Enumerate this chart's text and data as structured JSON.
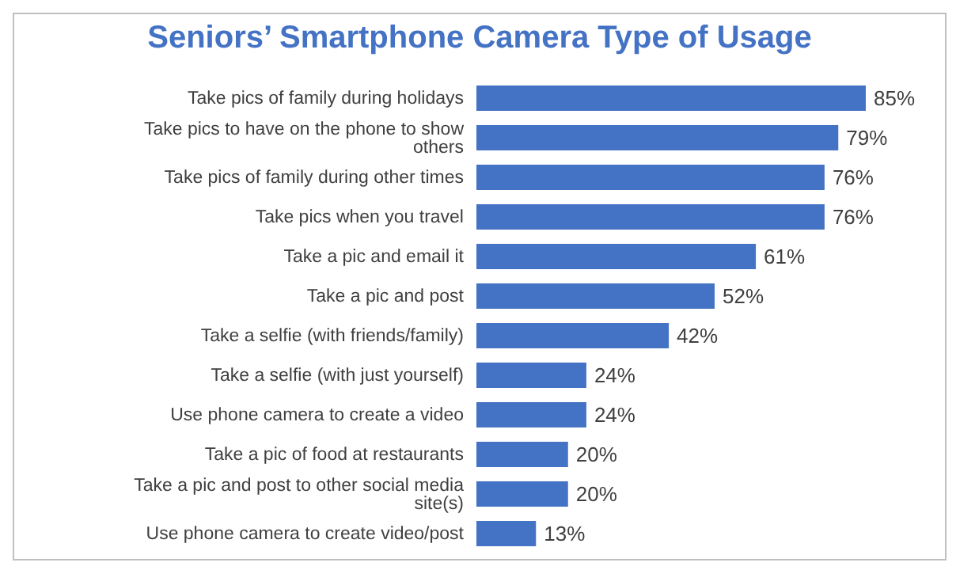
{
  "chart_data": {
    "type": "bar",
    "orientation": "horizontal",
    "title": "Seniors’ Smartphone Camera Type of Usage",
    "categories": [
      "Take pics of family during holidays",
      "Take pics to have on the phone to show others",
      "Take pics of family during other times",
      "Take pics when you travel",
      "Take a pic and email it",
      "Take a pic and post",
      "Take a selfie (with friends/family)",
      "Take a selfie (with just yourself)",
      "Use phone camera to create a video",
      "Take a pic of food at restaurants",
      "Take a pic and post to other social media site(s)",
      "Use phone camera to create video/post"
    ],
    "values": [
      85,
      79,
      76,
      76,
      61,
      52,
      42,
      24,
      24,
      20,
      20,
      13
    ],
    "value_labels": [
      "85%",
      "79%",
      "76%",
      "76%",
      "61%",
      "52%",
      "42%",
      "24%",
      "24%",
      "20%",
      "20%",
      "13%"
    ],
    "color": "#4472c4",
    "grid": false,
    "legend": false
  }
}
